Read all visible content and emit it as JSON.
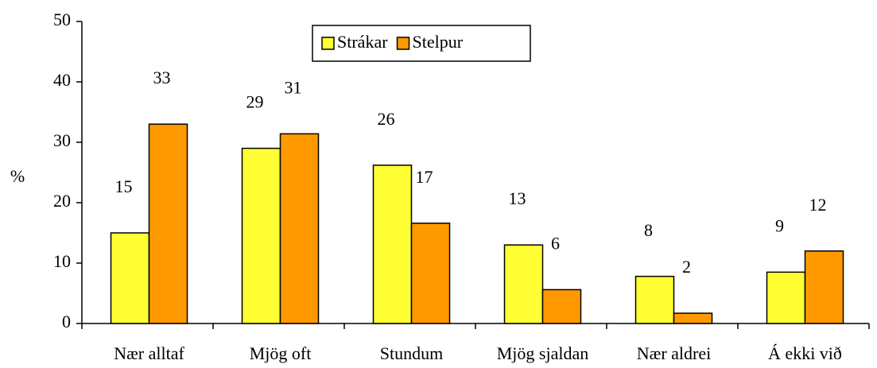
{
  "chart_data": {
    "type": "bar",
    "y_label": "%",
    "categories": [
      "Nær alltaf",
      "Mjög oft",
      "Stundum",
      "Mjög sjaldan",
      "Nær aldrei",
      "Á ekki við"
    ],
    "series": [
      {
        "name": "Strákar",
        "color": "#ffff33",
        "values": [
          15,
          29,
          26.2,
          13,
          7.8,
          8.5
        ],
        "value_labels": [
          "15",
          "29",
          "26",
          "13",
          "8",
          "9"
        ]
      },
      {
        "name": "Stelpur",
        "color": "#ff9900",
        "values": [
          33,
          31.4,
          16.6,
          5.6,
          1.7,
          12
        ],
        "value_labels": [
          "33",
          "31",
          "17",
          "6",
          "2",
          "12"
        ]
      }
    ],
    "ylim": [
      0,
      50
    ],
    "yticks": [
      0,
      10,
      20,
      30,
      40,
      50
    ],
    "grid": false,
    "legend": "top"
  }
}
